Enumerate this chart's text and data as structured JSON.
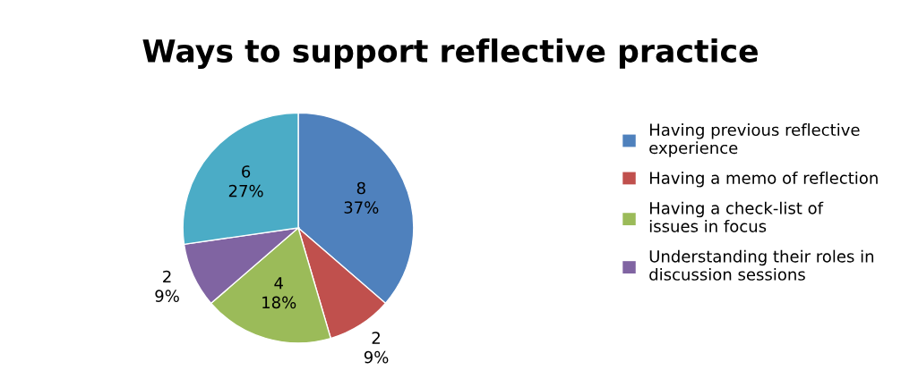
{
  "chart_data": {
    "type": "pie",
    "title": "Ways to support reflective practice",
    "categories": [
      "Having previous reflective experience",
      "Having a memo of reflection",
      "Having a check-list of issues in focus",
      "Understanding their roles in discussion sessions",
      null
    ],
    "values": [
      8,
      2,
      4,
      2,
      6
    ],
    "colors": [
      "#4f81bd",
      "#c0504d",
      "#9bbb59",
      "#8064a2",
      "#4bacc6"
    ],
    "value_labels": [
      "8\n37%",
      "2\n9%",
      "4\n18%",
      "2\n9%",
      "6\n27%"
    ],
    "legend": "right"
  }
}
